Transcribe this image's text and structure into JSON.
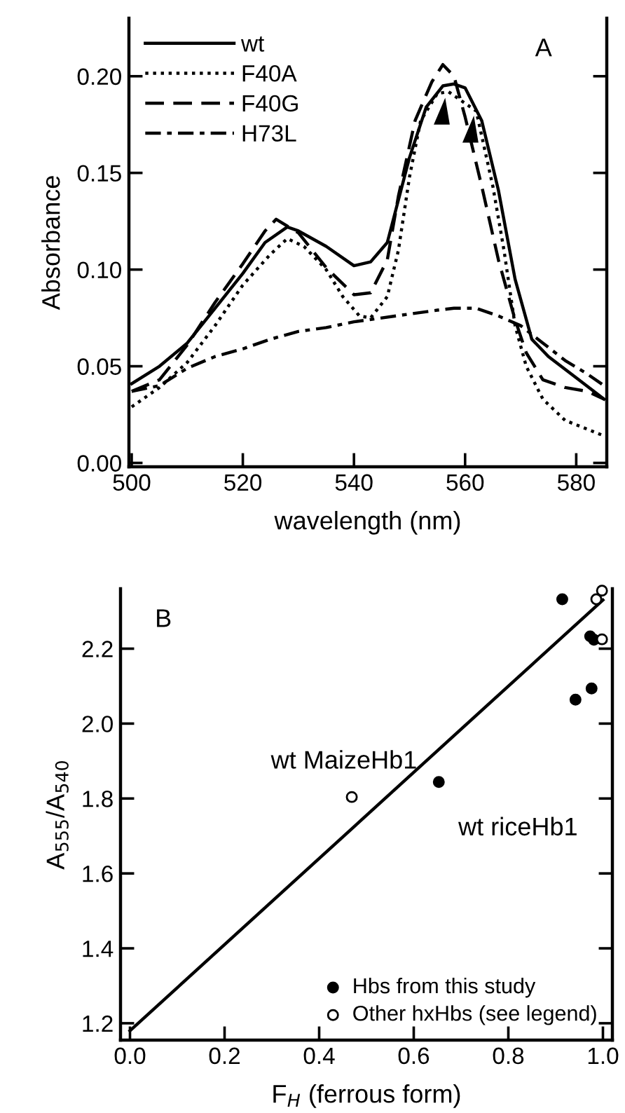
{
  "chart_data": [
    {
      "type": "line",
      "xlabel": "wavelength (nm)",
      "ylabel": "Absorbance",
      "xlim": [
        499.5,
        585.5
      ],
      "xticks": [
        500,
        520,
        540,
        560,
        580
      ],
      "ylim": [
        -0.002,
        0.23
      ],
      "yticks": [
        {
          "value": 0,
          "label": "0.00"
        },
        {
          "value": 0.05,
          "label": "0.05"
        },
        {
          "value": 0.1,
          "label": "0.10"
        },
        {
          "value": 0.15,
          "label": "0.15"
        },
        {
          "value": 0.2,
          "label": "0.20"
        }
      ],
      "legend": "top left",
      "grid": false,
      "annotations": [
        "A"
      ],
      "series": [
        {
          "name": "wt",
          "color": "#000000",
          "line_style": "solid",
          "x": [
            500,
            505,
            510,
            515,
            520,
            524,
            528,
            530,
            535,
            540,
            543,
            546,
            550,
            553,
            556,
            558,
            560,
            563,
            566,
            569,
            572,
            575,
            580,
            585
          ],
          "values": [
            0.041,
            0.05,
            0.062,
            0.08,
            0.098,
            0.114,
            0.122,
            0.12,
            0.112,
            0.102,
            0.104,
            0.114,
            0.158,
            0.184,
            0.195,
            0.196,
            0.194,
            0.177,
            0.141,
            0.095,
            0.064,
            0.055,
            0.044,
            0.033
          ]
        },
        {
          "name": "F40A",
          "color": "#000000",
          "line_style": "dotted",
          "x": [
            500,
            505,
            510,
            515,
            520,
            525,
            528,
            531,
            535,
            538,
            541,
            543,
            546,
            548,
            550,
            552,
            555,
            557,
            560,
            562,
            565,
            567,
            569,
            571,
            574,
            578,
            585
          ],
          "values": [
            0.029,
            0.039,
            0.052,
            0.071,
            0.092,
            0.108,
            0.116,
            0.112,
            0.1,
            0.086,
            0.076,
            0.075,
            0.086,
            0.11,
            0.148,
            0.177,
            0.191,
            0.192,
            0.186,
            0.182,
            0.143,
            0.11,
            0.071,
            0.05,
            0.033,
            0.022,
            0.014
          ]
        },
        {
          "name": "F40G",
          "color": "#000000",
          "line_style": "dashed",
          "x": [
            500,
            505,
            510,
            515,
            520,
            524,
            526,
            530,
            535,
            540,
            543,
            546,
            548,
            551,
            554,
            556,
            558,
            560,
            563,
            566,
            569,
            571,
            574,
            578,
            582,
            585
          ],
          "values": [
            0.037,
            0.043,
            0.061,
            0.083,
            0.103,
            0.12,
            0.126,
            0.119,
            0.101,
            0.087,
            0.088,
            0.105,
            0.138,
            0.177,
            0.197,
            0.206,
            0.2,
            0.179,
            0.143,
            0.105,
            0.074,
            0.057,
            0.043,
            0.039,
            0.037,
            0.033
          ]
        },
        {
          "name": "H73L",
          "color": "#000000",
          "line_style": "dashdot",
          "x": [
            500,
            505,
            510,
            515,
            520,
            525,
            530,
            535,
            540,
            545,
            550,
            555,
            558,
            562,
            566,
            570,
            574,
            578,
            582,
            585
          ],
          "values": [
            0.037,
            0.04,
            0.049,
            0.055,
            0.059,
            0.064,
            0.068,
            0.07,
            0.073,
            0.075,
            0.077,
            0.079,
            0.08,
            0.08,
            0.076,
            0.071,
            0.062,
            0.053,
            0.046,
            0.04
          ]
        }
      ]
    },
    {
      "type": "scatter",
      "xlabel": "F$_{H}$ (ferrous form)",
      "ylabel": "A$_{555}$/A$_{540}$",
      "xlim": [
        -0.02,
        1.02
      ],
      "xticks": [
        {
          "value": 0,
          "label": "0.0"
        },
        {
          "value": 0.2,
          "label": "0.2"
        },
        {
          "value": 0.4,
          "label": "0.4"
        },
        {
          "value": 0.6,
          "label": "0.6"
        },
        {
          "value": 0.8,
          "label": "0.8"
        },
        {
          "value": 1.0,
          "label": "1.0"
        }
      ],
      "ylim": [
        1.155,
        2.36
      ],
      "yticks": [
        {
          "value": 1.2,
          "label": "1.2"
        },
        {
          "value": 1.4,
          "label": "1.4"
        },
        {
          "value": 1.6,
          "label": "1.6"
        },
        {
          "value": 1.8,
          "label": "1.8"
        },
        {
          "value": 2.0,
          "label": "2.0"
        },
        {
          "value": 2.2,
          "label": "2.2"
        }
      ],
      "legend": "bottom right",
      "grid": false,
      "annotations": [
        "B",
        {
          "text": "wt MaizeHb1",
          "x": 0.469,
          "y": 1.804
        },
        {
          "text": "wt riceHb1",
          "x": 0.653,
          "y": 1.844
        }
      ],
      "series": [
        {
          "type": "line",
          "color": "#000000",
          "marker": "none",
          "x": [
            0,
            1.0
          ],
          "values": [
            1.18,
            2.33
          ]
        },
        {
          "name": "Hbs from this study",
          "color": "#000000",
          "marker": "circle",
          "x": [
            0.914,
            0.973,
            0.981,
            0.976,
            0.942,
            0.653
          ],
          "values": [
            2.332,
            2.233,
            2.224,
            2.094,
            2.064,
            1.844
          ]
        },
        {
          "name": "Other hxHbs (see legend)",
          "color": "#ffffff",
          "marker": "circle",
          "x": [
            0.469,
            0.986,
            0.998,
            0.998
          ],
          "values": [
            1.804,
            2.332,
            2.355,
            2.225
          ]
        }
      ]
    }
  ]
}
